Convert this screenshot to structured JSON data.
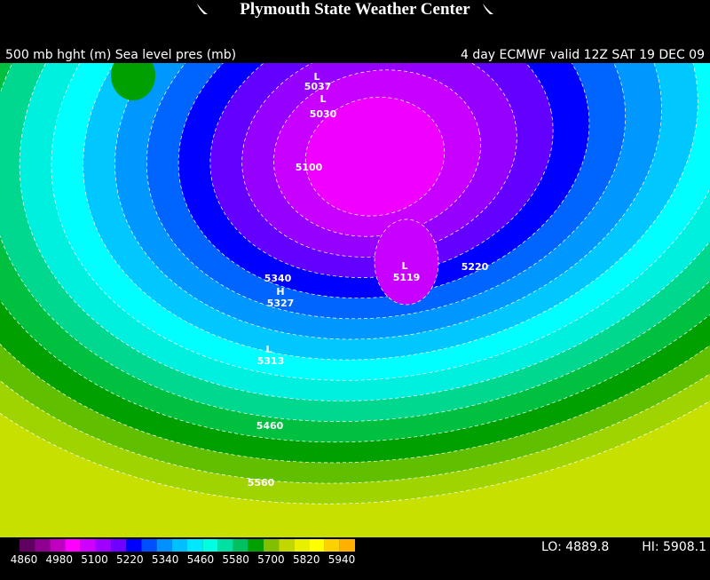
{
  "header": {
    "title": "Plymouth State Weather Center",
    "left": "500 mb hght (m) Sea level pres (mb)",
    "right": "4 day ECMWF valid 12Z SAT 19 DEC 09"
  },
  "map": {
    "labels": [
      "L",
      "5037",
      "L",
      "5030",
      "5100",
      "L",
      "5119",
      "5220",
      "5340",
      "H",
      "5327",
      "L",
      "5313",
      "5460",
      "5560"
    ]
  },
  "legend": {
    "ticks": [
      "4860",
      "4980",
      "5100",
      "5220",
      "5340",
      "5460",
      "5580",
      "5700",
      "5820",
      "5940"
    ],
    "lo": "LO: 4889.8",
    "hi": "HI: 5908.1"
  }
}
